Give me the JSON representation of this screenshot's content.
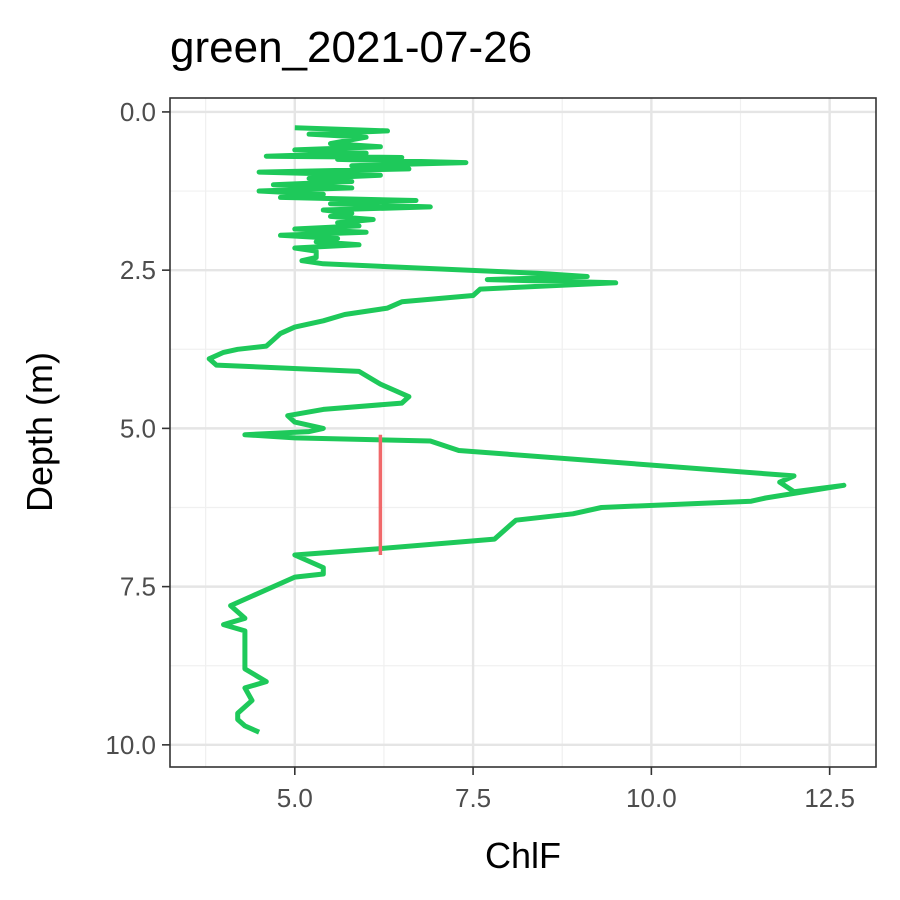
{
  "chart_data": {
    "type": "line",
    "title": "green_2021-07-26",
    "xlabel": "ChlF",
    "ylabel": "Depth (m)",
    "xlim": [
      3.25,
      13.15
    ],
    "ylim": [
      10.35,
      -0.22
    ],
    "y_reversed": true,
    "grid": true,
    "legend": "none",
    "x_ticks": [
      5.0,
      7.5,
      10.0,
      12.5
    ],
    "x_tick_labels": [
      "5.0",
      "7.5",
      "10.0",
      "12.5"
    ],
    "y_ticks": [
      0.0,
      2.5,
      5.0,
      7.5,
      10.0
    ],
    "y_tick_labels": [
      "0.0",
      "2.5",
      "5.0",
      "7.5",
      "10.0"
    ],
    "series": [
      {
        "color": "#1ec95a",
        "x": [
          5.0,
          6.3,
          5.2,
          6.0,
          5.5,
          6.2,
          5.0,
          6.0,
          4.6,
          6.5,
          5.6,
          7.4,
          5.8,
          6.6,
          4.5,
          6.2,
          5.2,
          5.8,
          4.7,
          5.8,
          4.5,
          5.4,
          4.8,
          6.7,
          5.5,
          6.9,
          5.4,
          5.8,
          5.5,
          6.1,
          5.6,
          5.9,
          5.0,
          6.0,
          4.8,
          5.6,
          5.3,
          5.9,
          5.0,
          5.3,
          5.3,
          5.1,
          5.4,
          8.4,
          9.1,
          7.7,
          9.5,
          7.6,
          7.5,
          6.5,
          6.3,
          5.7,
          5.4,
          5.0,
          4.8,
          4.7,
          4.6,
          4.2,
          4.0,
          3.8,
          3.9,
          5.9,
          6.2,
          6.4,
          6.6,
          6.5,
          5.4,
          4.9,
          5.0,
          5.4,
          5.2,
          4.3,
          5.0,
          6.9,
          7.3,
          12.0,
          11.8,
          12.0,
          12.7,
          11.6,
          11.4,
          9.3,
          8.9,
          8.1,
          8.0,
          7.8,
          6.2,
          5.0,
          5.4,
          5.4,
          5.0,
          4.4,
          4.1,
          4.3,
          4.0,
          4.3,
          4.3,
          4.3,
          4.3,
          4.6,
          4.3,
          4.4,
          4.2,
          4.2,
          4.3,
          4.5
        ],
        "y": [
          0.25,
          0.3,
          0.35,
          0.4,
          0.5,
          0.55,
          0.6,
          0.65,
          0.7,
          0.72,
          0.75,
          0.8,
          0.85,
          0.9,
          0.95,
          1.0,
          1.05,
          1.1,
          1.15,
          1.2,
          1.25,
          1.3,
          1.35,
          1.4,
          1.45,
          1.5,
          1.55,
          1.6,
          1.65,
          1.7,
          1.75,
          1.8,
          1.85,
          1.9,
          1.95,
          2.0,
          2.05,
          2.1,
          2.15,
          2.2,
          2.3,
          2.35,
          2.4,
          2.55,
          2.6,
          2.65,
          2.7,
          2.8,
          2.9,
          3.0,
          3.1,
          3.2,
          3.3,
          3.4,
          3.5,
          3.6,
          3.7,
          3.75,
          3.8,
          3.9,
          4.0,
          4.1,
          4.3,
          4.4,
          4.5,
          4.6,
          4.7,
          4.8,
          4.9,
          5.0,
          5.05,
          5.1,
          5.15,
          5.2,
          5.35,
          5.75,
          5.85,
          6.0,
          5.9,
          6.1,
          6.15,
          6.25,
          6.35,
          6.45,
          6.55,
          6.75,
          6.9,
          7.0,
          7.2,
          7.3,
          7.35,
          7.65,
          7.8,
          8.0,
          8.1,
          8.2,
          8.4,
          8.6,
          8.8,
          9.0,
          9.1,
          9.3,
          9.5,
          9.6,
          9.7,
          9.8
        ]
      },
      {
        "color": "#f0686a",
        "x": [
          6.2,
          6.2
        ],
        "y": [
          5.1,
          7.0
        ]
      }
    ]
  }
}
